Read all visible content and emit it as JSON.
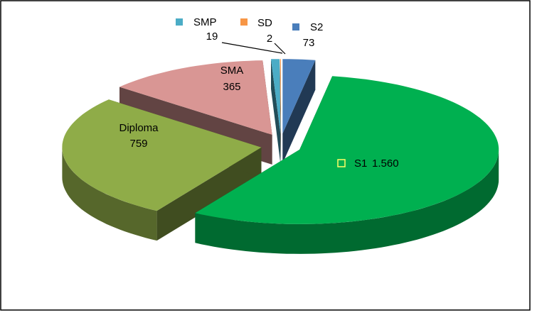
{
  "chart_data": {
    "type": "pie3d",
    "categories": [
      "S2",
      "S1",
      "Diploma",
      "SMA",
      "SMP",
      "SD"
    ],
    "values": [
      73,
      1560,
      759,
      365,
      19,
      2
    ],
    "value_labels": [
      "73",
      "1.560",
      "759",
      "365",
      "19",
      "2"
    ],
    "colors": [
      "#4a7ebb",
      "#00b050",
      "#8fac48",
      "#d99694",
      "#4bacc6",
      "#f79646"
    ]
  }
}
